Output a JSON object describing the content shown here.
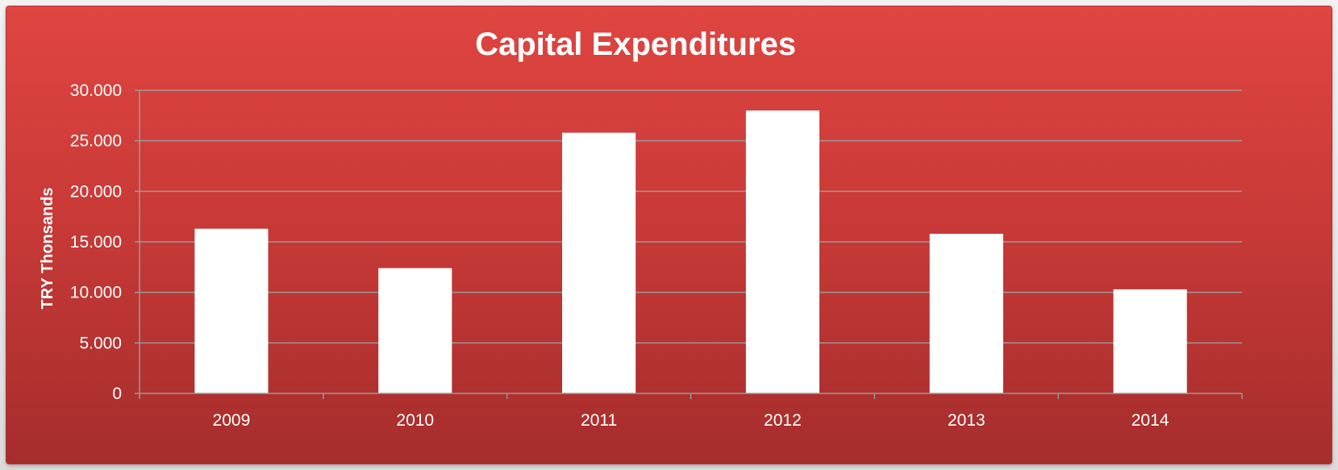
{
  "chart_data": {
    "type": "bar",
    "title": "Capital Expenditures",
    "xlabel": "",
    "ylabel": "TRY Thonsands",
    "categories": [
      "2009",
      "2010",
      "2011",
      "2012",
      "2013",
      "2014"
    ],
    "values": [
      16300,
      12400,
      25800,
      28000,
      15800,
      10300
    ],
    "ylim": [
      0,
      30000
    ],
    "y_ticks": [
      "0",
      "5.000",
      "10.000",
      "15.000",
      "20.000",
      "25.000",
      "30.000"
    ],
    "y_tick_values": [
      0,
      5000,
      10000,
      15000,
      20000,
      25000,
      30000
    ],
    "grid": true,
    "legend": "none",
    "colors": {
      "background_top": "#e04541",
      "background_bottom": "#a52d2c",
      "bar": "#ffffff",
      "gridline": "#9a9a9a",
      "text": "#ffffff"
    }
  }
}
